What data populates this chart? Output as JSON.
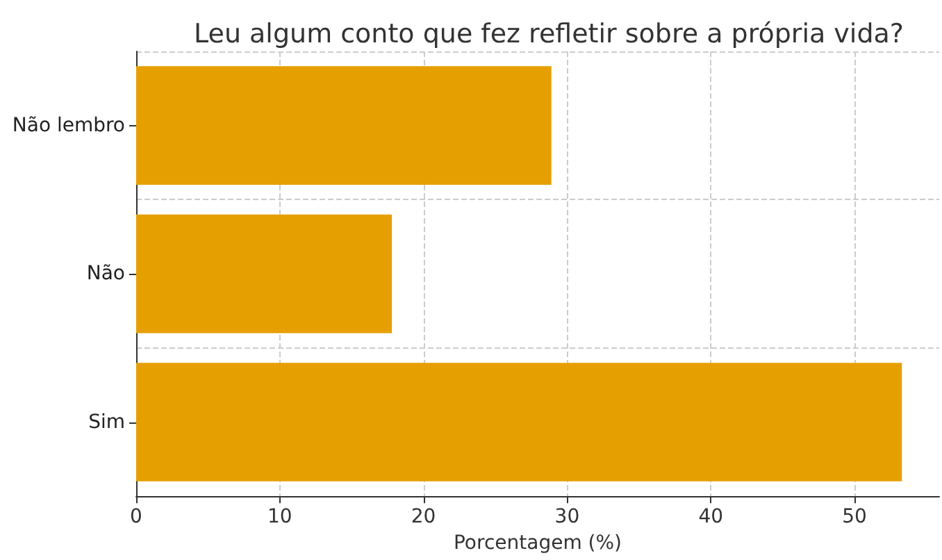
{
  "chart_data": {
    "type": "bar",
    "orientation": "horizontal",
    "title": "Leu algum conto que fez refletir sobre a própria vida?",
    "xlabel": "Porcentagem (%)",
    "categories": [
      "Não lembro",
      "Não",
      "Sim"
    ],
    "values": [
      28.9,
      17.8,
      53.3
    ],
    "color": "#e69f00",
    "xlim": [
      0,
      55.9
    ],
    "xticks": [
      0,
      10,
      20,
      30,
      40,
      50
    ],
    "grid": true
  }
}
